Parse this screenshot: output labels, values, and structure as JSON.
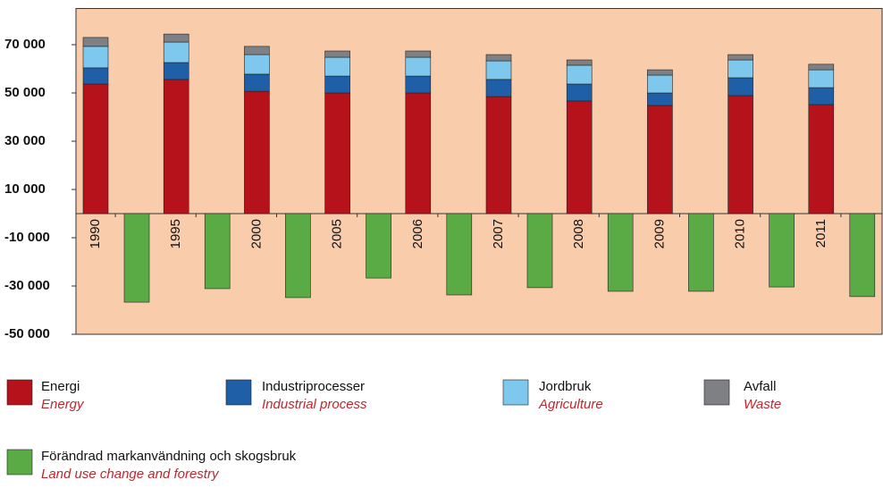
{
  "chart_data": {
    "type": "bar",
    "stacked": true,
    "categories": [
      "1990",
      "1995",
      "2000",
      "2005",
      "2006",
      "2007",
      "2008",
      "2009",
      "2010",
      "2011"
    ],
    "series": [
      {
        "name": "Energi",
        "subtitle": "Energy",
        "color": "#b5121b",
        "values": [
          53700,
          55600,
          50700,
          50000,
          50000,
          48500,
          46700,
          44800,
          48900,
          45200
        ]
      },
      {
        "name": "Industriprocesser",
        "subtitle": "Industrial process",
        "color": "#1f5fa8",
        "values": [
          6700,
          7000,
          7100,
          7000,
          7000,
          7100,
          7000,
          5200,
          7400,
          7000
        ]
      },
      {
        "name": "Jordbruk",
        "subtitle": "Agriculture",
        "color": "#7dc8ec",
        "values": [
          8900,
          8500,
          8100,
          7800,
          7800,
          7700,
          7800,
          7400,
          7400,
          7400
        ]
      },
      {
        "name": "Avfall",
        "subtitle": "Waste",
        "color": "#7f8084",
        "values": [
          3700,
          3300,
          3400,
          2600,
          2600,
          2600,
          2200,
          2200,
          2200,
          2300
        ]
      },
      {
        "name": "Förändrad markanvändning och skogsbruk",
        "subtitle": "Land use change and forestry",
        "color": "#5aab46",
        "values": [
          -36700,
          -31100,
          -34800,
          -26700,
          -33700,
          -30700,
          -32200,
          -32200,
          -30400,
          -34400
        ]
      }
    ],
    "ylim": [
      -50000,
      85000
    ],
    "yticks": [
      {
        "value": -50000,
        "label": "-50 000"
      },
      {
        "value": -30000,
        "label": "-30 000"
      },
      {
        "value": -10000,
        "label": "-10 000"
      },
      {
        "value": 10000,
        "label": "10 000"
      },
      {
        "value": 30000,
        "label": "30 000"
      },
      {
        "value": 50000,
        "label": "50 000"
      },
      {
        "value": 70000,
        "label": "70 000"
      }
    ],
    "plot_background": "#f9ccac"
  }
}
